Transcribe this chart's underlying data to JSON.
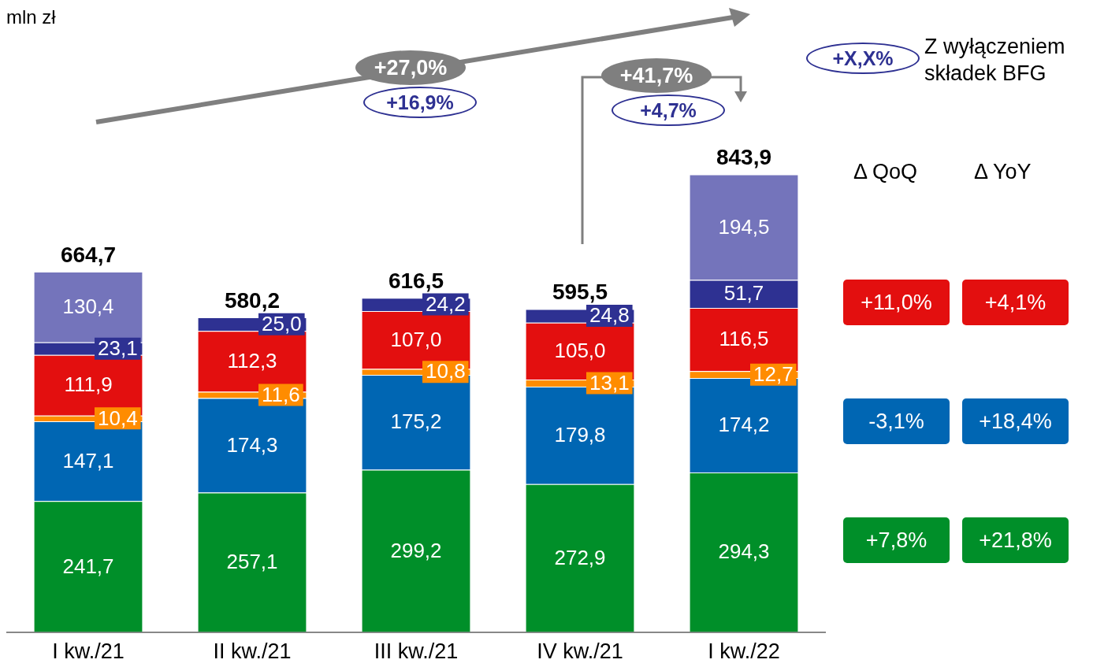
{
  "chart_data": {
    "type": "bar",
    "title": "mln zł",
    "stacked": true,
    "tick_labels": "x",
    "grid": false,
    "legend": false,
    "categories": [
      "I kw./21",
      "II kw./21",
      "III kw./21",
      "IV kw./21",
      "I kw./22"
    ],
    "series": [
      {
        "color": "#008f29",
        "values": [
          241.7,
          257.1,
          299.2,
          272.9,
          294.3
        ],
        "value_labels": [
          "241,7",
          "257,1",
          "299,2",
          "272,9",
          "294,3"
        ]
      },
      {
        "color": "#0066b3",
        "values": [
          147.1,
          174.3,
          175.2,
          179.8,
          174.2
        ],
        "value_labels": [
          "147,1",
          "174,3",
          "175,2",
          "179,8",
          "174,2"
        ]
      },
      {
        "color": "#ff8c00",
        "values": [
          10.4,
          11.6,
          10.8,
          13.1,
          12.7
        ],
        "value_labels": [
          "10,4",
          "11,6",
          "10,8",
          "13,1",
          "12,7"
        ]
      },
      {
        "color": "#e30f0f",
        "values": [
          111.9,
          112.3,
          107.0,
          105.0,
          116.5
        ],
        "value_labels": [
          "111,9",
          "112,3",
          "107,0",
          "105,0",
          "116,5"
        ]
      },
      {
        "color": "#2e3192",
        "values": [
          23.1,
          25.0,
          24.2,
          24.8,
          51.7
        ],
        "value_labels": [
          "23,1",
          "25,0",
          "24,2",
          "24,8",
          "51,7"
        ]
      },
      {
        "color": "#7474bb",
        "values": [
          130.4,
          null,
          null,
          null,
          194.5
        ],
        "value_labels": [
          "130,4",
          null,
          null,
          null,
          "194,5"
        ]
      }
    ],
    "totals": [
      "664,7",
      "580,2",
      "616,5",
      "595,5",
      "843,9"
    ],
    "annotations": [
      "+27,0%",
      "+16,9%",
      "+41,7%",
      "+4,7%",
      "+X,X%",
      "Z wyłączeniem składek BFG",
      "Δ QoQ",
      "Δ YoY",
      "+11,0%",
      "+4,1%",
      "-3,1%",
      "+18,4%",
      "+7,8%",
      "+21,8%"
    ]
  }
}
